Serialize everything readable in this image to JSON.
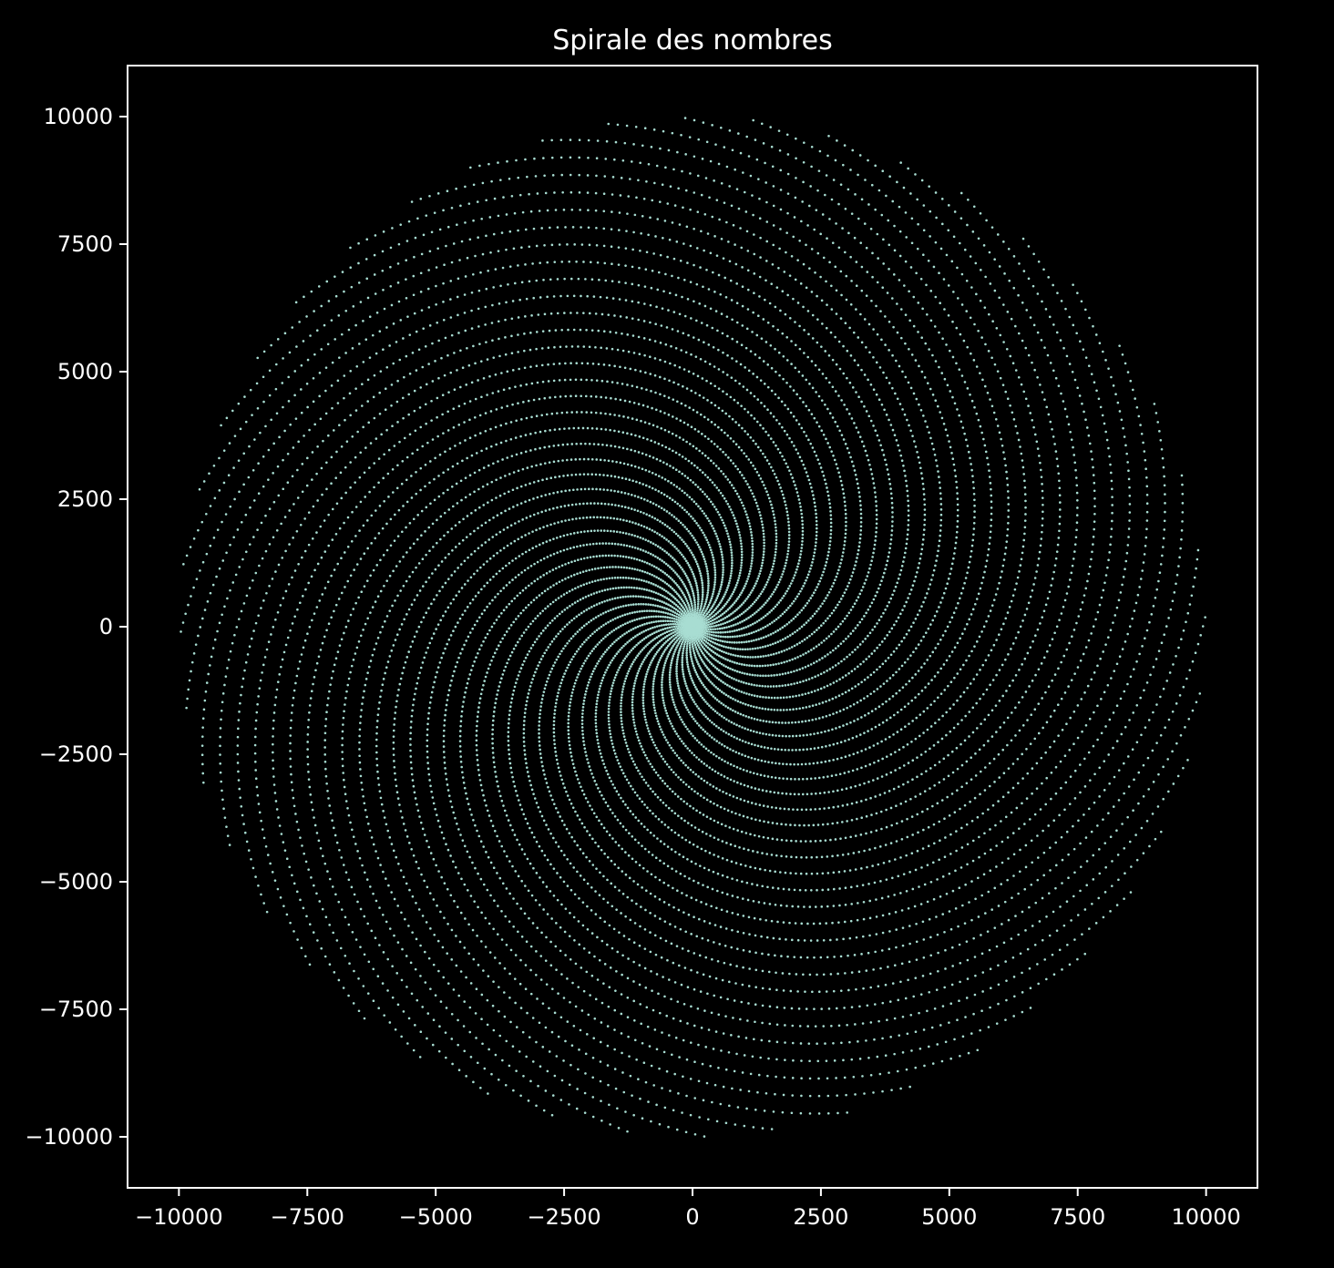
{
  "chart_data": {
    "type": "scatter",
    "title": "Spirale des nombres",
    "xlabel": "",
    "ylabel": "",
    "xlim": [
      -11000,
      11000
    ],
    "ylim": [
      -11000,
      11000
    ],
    "x_ticks": [
      -10000,
      -7500,
      -5000,
      -2500,
      0,
      2500,
      5000,
      7500,
      10000
    ],
    "y_ticks": [
      -10000,
      -7500,
      -5000,
      -2500,
      0,
      2500,
      5000,
      7500,
      10000
    ],
    "x_tick_labels": [
      "−10000",
      "−7500",
      "−5000",
      "−2500",
      "0",
      "2500",
      "5000",
      "7500",
      "10000"
    ],
    "y_tick_labels": [
      "−10000",
      "−7500",
      "−5000",
      "−2500",
      "0",
      "2500",
      "5000",
      "7500",
      "10000"
    ],
    "grid": false,
    "series": [
      {
        "points": "polar (r = n, theta = n radians) for n = 1 .. 10000",
        "n_min": 1,
        "n_max": 10000,
        "color": "#a8ddd2"
      }
    ],
    "colors": {
      "background": "#000000",
      "axes": "#ffffff",
      "text": "#ffffff",
      "marker": "#a8ddd2"
    }
  }
}
